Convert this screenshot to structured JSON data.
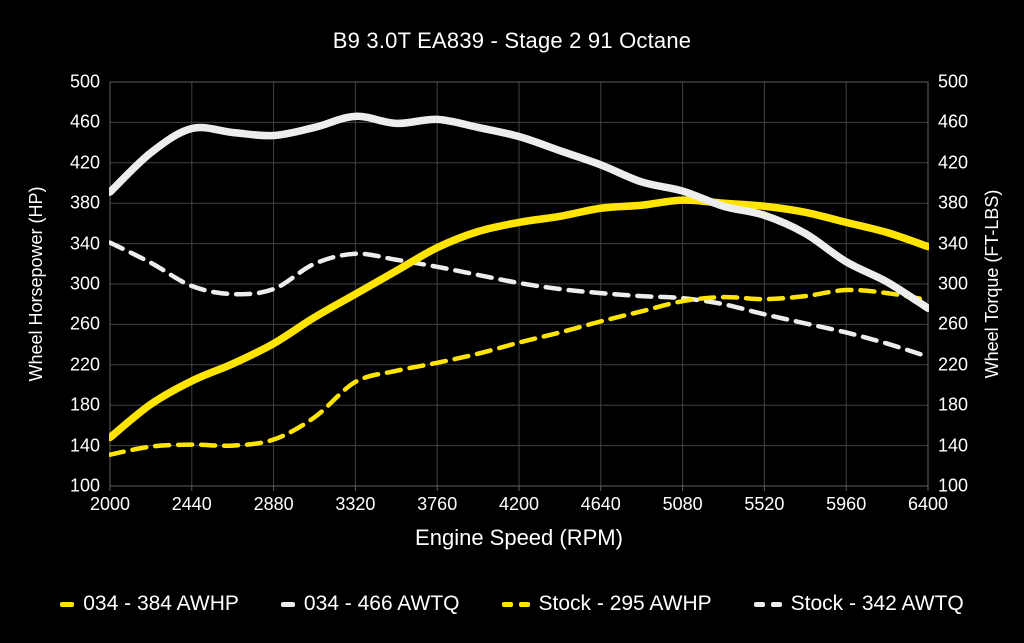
{
  "title": "B9 3.0T EA839 - Stage 2 91 Octane",
  "colors": {
    "background": "#000000",
    "text": "#ffffff",
    "grid": "#414141",
    "border": "#616161",
    "yellow": "#ffe500",
    "white": "#ededed"
  },
  "chart_data": {
    "type": "line",
    "title": "B9 3.0T EA839 - Stage 2 91 Octane",
    "xlabel": "Engine Speed (RPM)",
    "ylabel_left": "Wheel Horsepower (HP)",
    "ylabel_right": "Wheel Torque (FT-LBS)",
    "xlim": [
      2000,
      6400
    ],
    "ylim": [
      100,
      500
    ],
    "x_ticks": [
      2000,
      2440,
      2880,
      3320,
      3760,
      4200,
      4640,
      5080,
      5520,
      5960,
      6400
    ],
    "y_ticks": [
      500,
      460,
      420,
      380,
      340,
      300,
      260,
      220,
      180,
      140,
      100
    ],
    "grid": true,
    "legend_position": "bottom",
    "x": [
      2000,
      2220,
      2440,
      2660,
      2880,
      3100,
      3320,
      3540,
      3760,
      3980,
      4200,
      4420,
      4640,
      4860,
      5080,
      5300,
      5520,
      5740,
      5960,
      6180,
      6400
    ],
    "series": [
      {
        "name": "034 - 384 AWHP",
        "axis": "left",
        "style": "solid",
        "color": "#ffe500",
        "width": 7.5,
        "values": [
          148,
          181,
          204,
          221,
          241,
          267,
          290,
          313,
          336,
          352,
          361,
          367,
          375,
          378,
          383,
          380,
          377,
          371,
          361,
          351,
          337
        ]
      },
      {
        "name": "034 - 466 AWTQ",
        "axis": "right",
        "style": "solid",
        "color": "#ededed",
        "width": 7.5,
        "values": [
          391,
          430,
          454,
          450,
          447,
          455,
          466,
          459,
          463,
          455,
          446,
          432,
          418,
          401,
          392,
          377,
          368,
          350,
          322,
          302,
          276
        ]
      },
      {
        "name": "Stock - 295 AWHP",
        "axis": "left",
        "style": "dashed",
        "color": "#ffe500",
        "width": 4.5,
        "values": [
          131,
          139,
          141,
          140,
          146,
          168,
          203,
          214,
          222,
          231,
          242,
          252,
          263,
          273,
          283,
          287,
          285,
          288,
          294,
          291,
          284
        ]
      },
      {
        "name": "Stock - 342 AWTQ",
        "axis": "right",
        "style": "dashed",
        "color": "#ededed",
        "width": 4.5,
        "values": [
          341,
          321,
          298,
          290,
          295,
          320,
          330,
          324,
          317,
          309,
          301,
          295,
          291,
          288,
          286,
          280,
          270,
          261,
          252,
          241,
          228
        ]
      }
    ]
  }
}
